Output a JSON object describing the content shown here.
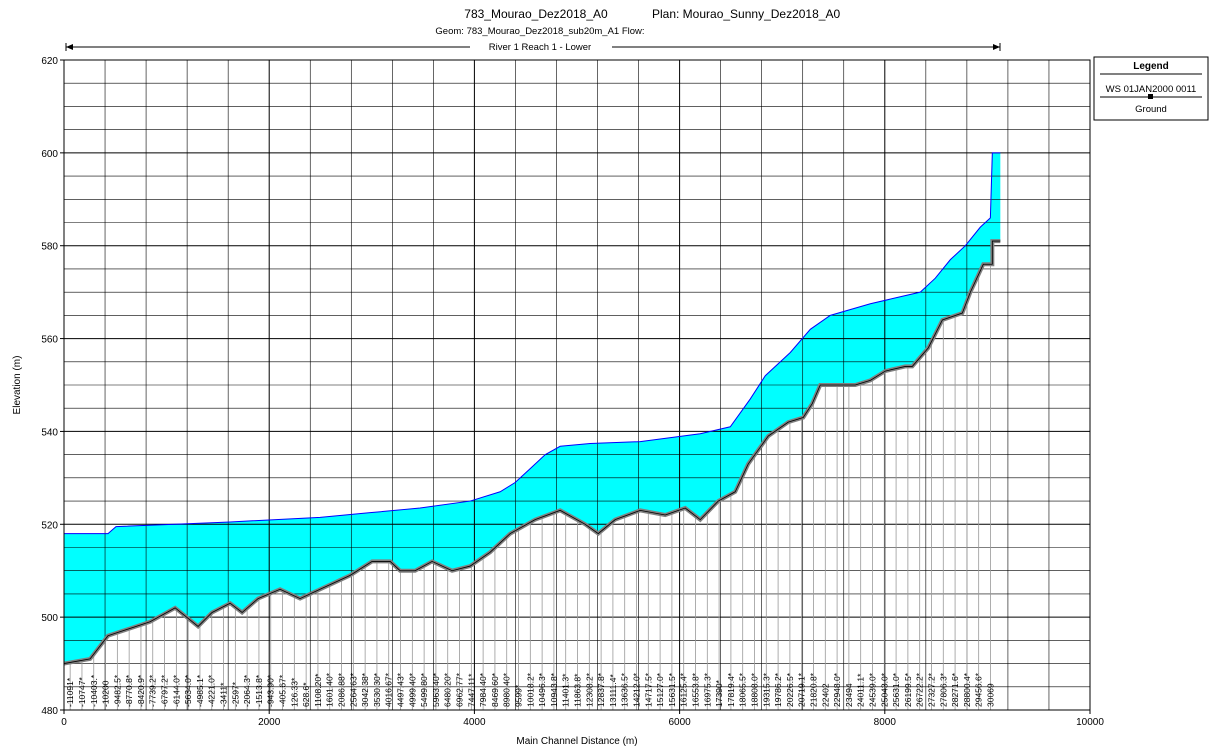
{
  "chart_data": {
    "type": "line",
    "title": "783_Mourao_Dez2018_A0",
    "plan": "Plan: Mourao_Sunny_Dez2018_A0",
    "subtitle": "Geom: 783_Mourao_Dez2018_sub20m_A1   Flow:",
    "reach": "River 1 Reach 1 - Lower",
    "xlabel": "Main Channel Distance (m)",
    "ylabel": "Elevation (m)",
    "xlim": [
      0,
      10000
    ],
    "ylim": [
      480,
      620
    ],
    "xticks": [
      0,
      2000,
      4000,
      6000,
      8000,
      10000
    ],
    "yticks": [
      480,
      500,
      520,
      540,
      560,
      580,
      600,
      620
    ],
    "grid": true,
    "minor_x": 5,
    "minor_y": 4,
    "legend": {
      "title": "Legend",
      "position": "right"
    },
    "series": [
      {
        "name": "WS 01JAN2000 0011",
        "color": "#00ffff",
        "line_color": "#0000ff",
        "x": [
          0,
          429,
          507,
          1083,
          1619,
          2496,
          2984,
          3471,
          3959,
          4251,
          4397,
          4544,
          4690,
          4836,
          5129,
          5616,
          6201,
          6494,
          6689,
          6835,
          7079,
          7274,
          7469,
          7859,
          8151,
          8346,
          8492,
          8639,
          8785,
          8931,
          9029,
          9048,
          9126
        ],
        "values": [
          518,
          518,
          519.5,
          520,
          520.5,
          521.5,
          522.5,
          523.5,
          525,
          527,
          529,
          532,
          535,
          536.8,
          537.4,
          537.8,
          539.5,
          541,
          547,
          552,
          557,
          562,
          565,
          567.5,
          569,
          570,
          573,
          577,
          580,
          584,
          586,
          600,
          600
        ]
      },
      {
        "name": "Ground",
        "color": "#808080",
        "x": [
          0,
          254,
          429,
          497,
          839,
          1083,
          1307,
          1443,
          1619,
          1736,
          1892,
          2106,
          2301,
          2496,
          2789,
          3003,
          3179,
          3276,
          3422,
          3588,
          3783,
          3959,
          4154,
          4349,
          4592,
          4836,
          5080,
          5207,
          5372,
          5616,
          5860,
          6055,
          6201,
          6377,
          6542,
          6669,
          6864,
          7059,
          7205,
          7293,
          7371,
          7712,
          7859,
          8005,
          8200,
          8268,
          8424,
          8561,
          8756,
          8834,
          8960,
          9048,
          9048,
          9126
        ],
        "values": [
          490,
          491,
          496,
          496.5,
          499,
          502,
          498,
          501,
          503,
          501,
          504,
          506,
          504,
          506,
          509,
          512,
          512,
          510,
          510,
          512,
          510,
          511,
          514,
          518,
          521,
          523,
          520,
          518,
          521,
          523,
          522,
          523.5,
          521,
          525,
          527,
          533,
          539,
          542,
          543,
          546,
          550,
          550,
          551,
          553,
          554,
          554,
          558,
          564,
          565.5,
          570,
          576,
          576,
          581,
          581
        ]
      }
    ],
    "stations": {
      "x": [
        60,
        175,
        290,
        405,
        520,
        635,
        750,
        865,
        980,
        1095,
        1210,
        1325,
        1440,
        1555,
        1670,
        1785,
        1900,
        2015,
        2130,
        2245,
        2360,
        2475,
        2590,
        2705,
        2820,
        2935,
        3050,
        3165,
        3280,
        3395,
        3510,
        3625,
        3740,
        3855,
        3970,
        4085,
        4200,
        4315,
        4430,
        4545,
        4660,
        4775,
        4890,
        5005,
        5120,
        5235,
        5350,
        5465,
        5580,
        5695,
        5810,
        5925,
        6040,
        6155,
        6270,
        6385,
        6500,
        6615,
        6730,
        6845,
        6960,
        7075,
        7190,
        7305,
        7420,
        7535,
        7650,
        7765,
        7880,
        7995,
        8110,
        8225,
        8340,
        8455,
        8570,
        8685,
        8800,
        8915,
        9030
      ],
      "labels": [
        "-11091*",
        "-10747*",
        "-10403.*",
        "-10200",
        "-9482.5*",
        "-8770.8*",
        "-8420.9*",
        "-7739.2*",
        "-6797.2*",
        "-6144.0*",
        "-5634.0*",
        "-4985.1*",
        "-4221.0*",
        "-3411*",
        "-2597*",
        "-2064.3*",
        "-1513.8*",
        "-943.90*",
        "-405.67*",
        "126.33*",
        "628.6*",
        "1108.20*",
        "1601.40*",
        "2086.88*",
        "2564.63*",
        "3042.38*",
        "3530.30*",
        "4016.67*",
        "4497.43*",
        "4999.40*",
        "5499.80*",
        "5963.40*",
        "6480.20*",
        "6962.77*",
        "7447.11*",
        "7984.40*",
        "8469.60*",
        "8980.40*",
        "9599*",
        "10018.2*",
        "10496.3*",
        "10943.8*",
        "11401.3*",
        "11863.8*",
        "12308.2*",
        "12837.8*",
        "13111.4*",
        "13636.5*",
        "14212.0*",
        "14717.5*",
        "15127.0*",
        "15631.5*",
        "16125.4*",
        "16553.8*",
        "16975.3*",
        "17390*",
        "17819.4*",
        "18065.5*",
        "18808.0*",
        "19315.3*",
        "19786.2*",
        "20226.5*",
        "20719.1*",
        "21820.8*",
        "22402",
        "22948.0*",
        "23494",
        "24011.1*",
        "24539.0*",
        "25043.0*",
        "25631.0*",
        "26199.5*",
        "26722.2*",
        "27327.2*",
        "27806.3*",
        "28271.6*",
        "28800.4*",
        "29456.6*",
        "30069"
      ]
    }
  }
}
